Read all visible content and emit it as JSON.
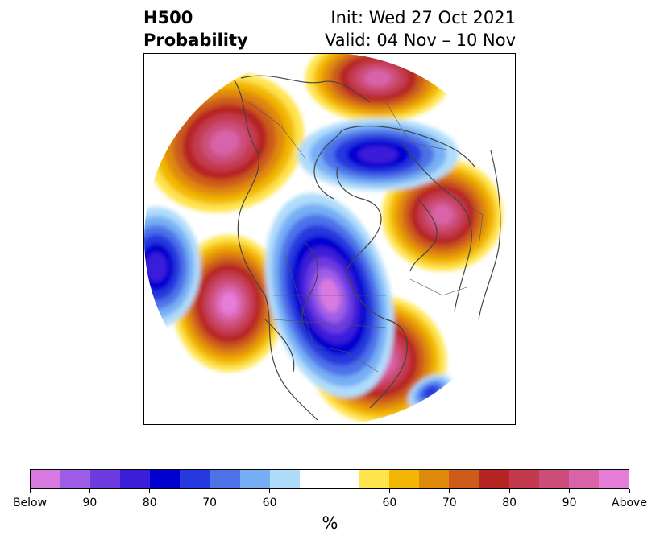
{
  "title": {
    "left": "H500\nProbability",
    "right": "Init: Wed 27 Oct 2021\nValid: 04 Nov – 10 Nov"
  },
  "map": {
    "projection": "north-polar-stereographic",
    "features": [
      "coastlines",
      "country-borders",
      "state-province-borders"
    ],
    "anomalies": [
      {
        "region": "alaska-bering",
        "category": "above",
        "peak": "90"
      },
      {
        "region": "central-north-pacific",
        "category": "above",
        "peak": "above"
      },
      {
        "region": "eastern-north-america",
        "category": "above",
        "peak": "above"
      },
      {
        "region": "western-russia-scandinavia",
        "category": "above",
        "peak": "90"
      },
      {
        "region": "east-siberian-arctic",
        "category": "above",
        "peak": "90"
      },
      {
        "region": "central-canada-western-us",
        "category": "below",
        "peak": "below"
      },
      {
        "region": "north-of-scandinavia-arctic",
        "category": "below",
        "peak": "80"
      },
      {
        "region": "western-pacific-edge",
        "category": "below",
        "peak": "80"
      },
      {
        "region": "subtropical-atlantic",
        "category": "below",
        "peak": "70"
      }
    ]
  },
  "colorbar": {
    "colors": [
      "#d87ae0",
      "#9d5de6",
      "#6d3be0",
      "#3a1ed8",
      "#0000cf",
      "#2639de",
      "#4d72e8",
      "#77aff5",
      "#b0dcfb",
      "#ffffff",
      "#ffffff",
      "#ffe44d",
      "#f2b705",
      "#e08a0b",
      "#cc5b1c",
      "#b62423",
      "#c33a4e",
      "#cc4d7a",
      "#d863a8",
      "#e67dd9"
    ],
    "tick_labels": [
      "Below",
      "90",
      "80",
      "70",
      "60",
      "60",
      "70",
      "80",
      "90",
      "Above"
    ],
    "unit": "%"
  }
}
